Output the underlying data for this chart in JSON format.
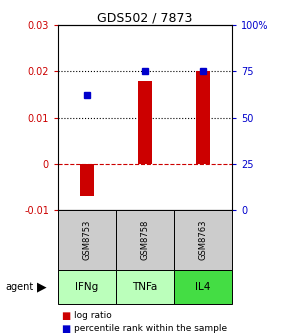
{
  "title": "GDS502 / 7873",
  "samples": [
    "GSM8753",
    "GSM8758",
    "GSM8763"
  ],
  "agents": [
    "IFNg",
    "TNFa",
    "IL4"
  ],
  "log_ratios": [
    -0.007,
    0.018,
    0.02
  ],
  "percentile_ranks": [
    0.015,
    0.02,
    0.02
  ],
  "ylim_left": [
    -0.01,
    0.03
  ],
  "ylim_right": [
    0,
    1.0
  ],
  "yticks_left": [
    -0.01,
    0.0,
    0.01,
    0.02,
    0.03
  ],
  "yticks_right": [
    0.0,
    0.25,
    0.5,
    0.75,
    1.0
  ],
  "ytick_labels_right": [
    "0",
    "25",
    "50",
    "75",
    "100%"
  ],
  "ytick_labels_left": [
    "-0.01",
    "0",
    "0.01",
    "0.02",
    "0.03"
  ],
  "bar_color": "#cc0000",
  "dot_color": "#0000cc",
  "agent_colors": [
    "#bbffbb",
    "#bbffbb",
    "#44dd44"
  ],
  "sample_bg": "#cccccc",
  "zero_line_color": "#cc0000",
  "dotted_line_color": "#000000",
  "bar_width": 0.25,
  "title_color": "#000000",
  "left_axis_color": "#cc0000",
  "right_axis_color": "#0000cc"
}
